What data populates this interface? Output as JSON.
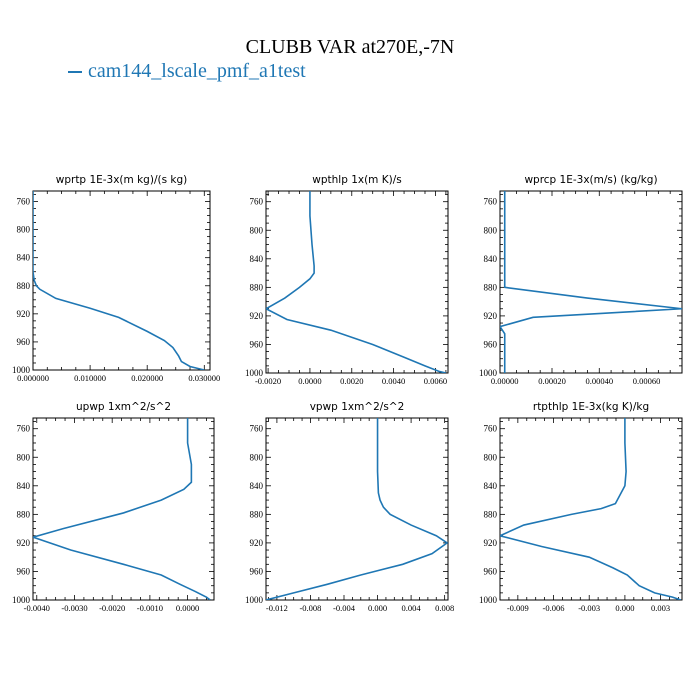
{
  "figure_title": "CLUBB VAR at270E,-7N",
  "legend_label": "cam144_lscale_pmf_a1test",
  "series_color": "#1f77b4",
  "chart_data": [
    {
      "type": "line",
      "title": "wprtp  1E-3x(m kg)/(s kg)",
      "xlim": [
        0.0,
        0.031
      ],
      "ylim": [
        1000,
        745
      ],
      "y_inverted": true,
      "xticks": [
        0.0,
        0.01,
        0.02,
        0.03
      ],
      "xtick_labels": [
        "0.000000",
        "0.010000",
        "0.020000",
        "0.030000"
      ],
      "yticks": [
        760,
        800,
        840,
        880,
        920,
        960,
        1000
      ],
      "series": [
        {
          "x": [
            0,
            0,
            0.0002,
            0.0006,
            0.0012,
            0.004,
            0.01,
            0.015,
            0.02,
            0.023,
            0.0245,
            0.0255,
            0.026,
            0.0275,
            0.029,
            0.03
          ],
          "y": [
            745,
            860,
            872,
            880,
            885,
            898,
            912,
            925,
            945,
            958,
            968,
            980,
            988,
            995,
            998,
            1000
          ]
        }
      ]
    },
    {
      "type": "line",
      "title": "wpthlp  1x(m K)/s",
      "xlim": [
        -0.0021,
        0.0066
      ],
      "ylim": [
        1000,
        745
      ],
      "y_inverted": true,
      "xticks": [
        -0.002,
        0.0,
        0.002,
        0.004,
        0.006
      ],
      "xtick_labels": [
        "-0.0020",
        "0.0000",
        "0.0020",
        "0.0040",
        "0.0060"
      ],
      "yticks": [
        760,
        800,
        840,
        880,
        920,
        960,
        1000
      ],
      "series": [
        {
          "x": [
            0.0,
            0.0,
            0.0001,
            0.0002,
            0.0002,
            0.0,
            -0.0005,
            -0.0012,
            -0.0021,
            -0.0011,
            0.001,
            0.003,
            0.0045,
            0.0055,
            0.0062,
            0.0065
          ],
          "y": [
            745,
            780,
            820,
            850,
            860,
            868,
            880,
            895,
            910,
            925,
            940,
            960,
            978,
            990,
            998,
            1000
          ]
        }
      ]
    },
    {
      "type": "line",
      "title": "wprcp  1E-3x(m/s) (kg/kg)",
      "xlim": [
        -2e-05,
        0.00075
      ],
      "ylim": [
        1000,
        745
      ],
      "y_inverted": true,
      "xticks": [
        0.0,
        0.0002,
        0.0004,
        0.0006
      ],
      "xtick_labels": [
        "0.00000",
        "0.00020",
        "0.00040",
        "0.00060"
      ],
      "yticks": [
        760,
        800,
        840,
        880,
        920,
        960,
        1000
      ],
      "series": [
        {
          "x": [
            0,
            0,
            0.0,
            0.00035,
            0.00075,
            0.00012,
            -2e-05,
            0,
            0
          ],
          "y": [
            745,
            870,
            880,
            895,
            910,
            922,
            935,
            945,
            1000
          ]
        }
      ]
    },
    {
      "type": "line",
      "title": "upwp  1xm^2/s^2",
      "xlim": [
        -0.0041,
        0.0007
      ],
      "ylim": [
        1000,
        745
      ],
      "y_inverted": true,
      "xticks": [
        -0.004,
        -0.003,
        -0.002,
        -0.001,
        0.0
      ],
      "xtick_labels": [
        "-0.0040",
        "-0.0030",
        "-0.0020",
        "-0.0010",
        "0.0000"
      ],
      "yticks": [
        760,
        800,
        840,
        880,
        920,
        960,
        1000
      ],
      "series": [
        {
          "x": [
            0.0,
            0.0,
            0.0001,
            0.0001,
            -0.0001,
            -0.0007,
            -0.0017,
            -0.0033,
            -0.0041,
            -0.0031,
            -0.0017,
            -0.0007,
            -0.0002,
            0.0002,
            0.0005,
            0.0006
          ],
          "y": [
            745,
            780,
            810,
            835,
            845,
            860,
            878,
            900,
            912,
            930,
            950,
            965,
            978,
            988,
            996,
            1000
          ]
        }
      ]
    },
    {
      "type": "line",
      "title": "vpwp  1xm^2/s^2",
      "xlim": [
        -0.0133,
        0.0084
      ],
      "ylim": [
        1000,
        745
      ],
      "y_inverted": true,
      "xticks": [
        -0.012,
        -0.008,
        -0.004,
        0.0,
        0.004,
        0.008
      ],
      "xtick_labels": [
        "-0.012",
        "-0.008",
        "-0.004",
        "0.000",
        "0.004",
        "0.008"
      ],
      "yticks": [
        760,
        800,
        840,
        880,
        920,
        960,
        1000
      ],
      "series": [
        {
          "x": [
            0.0,
            0.0,
            0.0001,
            0.0003,
            0.0007,
            0.0015,
            0.004,
            0.007,
            0.0083,
            0.0065,
            0.003,
            -0.002,
            -0.006,
            -0.01,
            -0.0133
          ],
          "y": [
            745,
            820,
            850,
            860,
            870,
            880,
            895,
            910,
            920,
            935,
            950,
            965,
            978,
            990,
            1000
          ]
        }
      ]
    },
    {
      "type": "line",
      "title": "rtpthlp  1E-3x(kg K)/kg",
      "xlim": [
        -0.0105,
        0.0048
      ],
      "ylim": [
        1000,
        745
      ],
      "y_inverted": true,
      "xticks": [
        -0.009,
        -0.006,
        -0.003,
        0.0,
        0.003
      ],
      "xtick_labels": [
        "-0.009",
        "-0.006",
        "-0.003",
        "0.000",
        "0.003"
      ],
      "yticks": [
        760,
        800,
        840,
        880,
        920,
        960,
        1000
      ],
      "series": [
        {
          "x": [
            0.0,
            0.0,
            0.0001,
            0.0,
            -0.0008,
            -0.002,
            -0.0045,
            -0.0085,
            -0.0105,
            -0.007,
            -0.003,
            -0.001,
            0.0002,
            0.0012,
            0.0025,
            0.004,
            0.0047
          ],
          "y": [
            745,
            780,
            820,
            840,
            865,
            872,
            880,
            895,
            910,
            925,
            940,
            955,
            965,
            980,
            990,
            996,
            1000
          ]
        }
      ]
    }
  ]
}
